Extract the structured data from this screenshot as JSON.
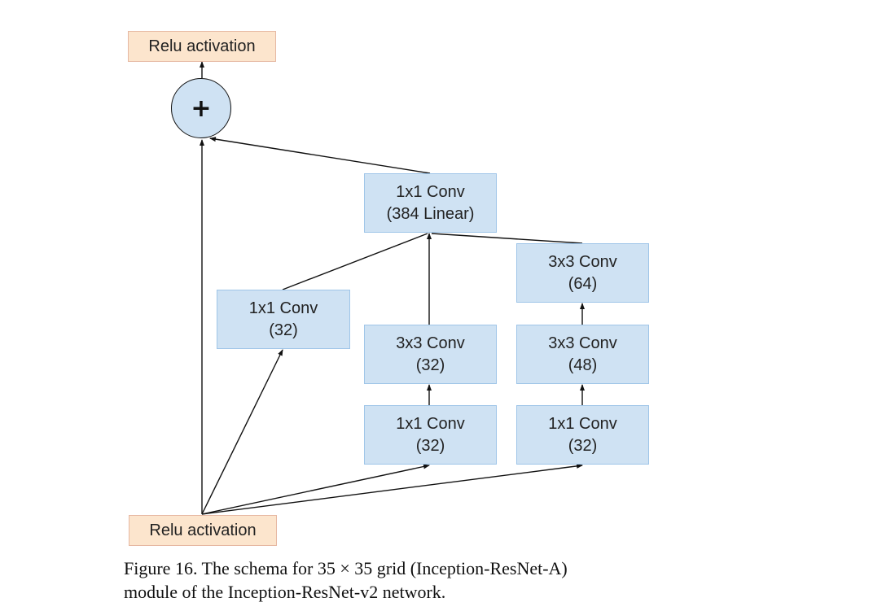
{
  "diagram": {
    "nodes": {
      "relu_top": "Relu activation",
      "plus": "+",
      "linear_l1": "1x1 Conv",
      "linear_l2": "(384 Linear)",
      "b1_l1": "1x1 Conv",
      "b1_l2": "(32)",
      "b2_conv3_l1": "3x3 Conv",
      "b2_conv3_l2": "(32)",
      "b2_conv1_l1": "1x1 Conv",
      "b2_conv1_l2": "(32)",
      "b3_conv64_l1": "3x3 Conv",
      "b3_conv64_l2": "(64)",
      "b3_conv48_l1": "3x3 Conv",
      "b3_conv48_l2": "(48)",
      "b3_conv1_l1": "1x1 Conv",
      "b3_conv1_l2": "(32)",
      "relu_bottom": "Relu activation"
    },
    "colors": {
      "conv_fill": "#cfe2f3",
      "conv_border": "#9fc5e8",
      "relu_fill": "#fce5cd",
      "relu_border": "#e6b8a2",
      "edge": "#111111"
    }
  },
  "caption": {
    "line1": "Figure 16. The schema for 35 × 35 grid (Inception-ResNet-A)",
    "line2": "module of the Inception-ResNet-v2 network."
  }
}
